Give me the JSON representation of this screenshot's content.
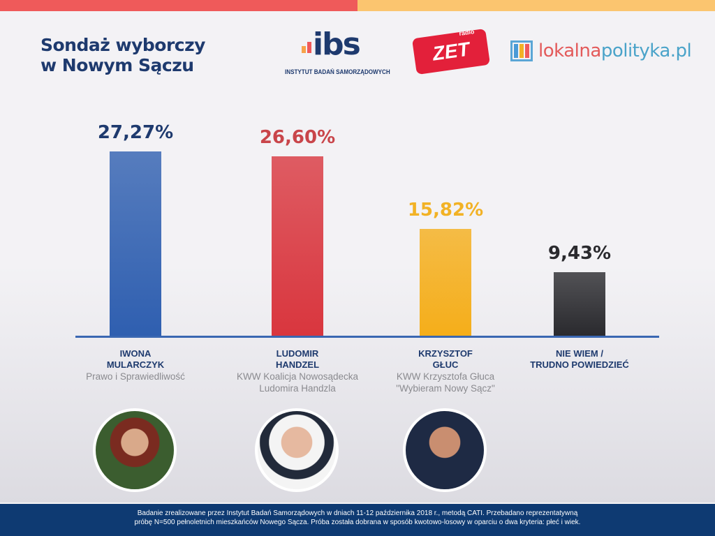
{
  "header": {
    "title_line1": "Sondaż wyborczy",
    "title_line2": "w Nowym Sączu",
    "logos": {
      "ibs": "ibs",
      "ibs_sub": "INSTYTUT BADAŃ SAMORZĄDOWYCH",
      "zet": "ZET",
      "zet_small": "radio",
      "lp_a": "lokalna",
      "lp_b": "polityka.pl"
    }
  },
  "chart_data": {
    "type": "bar",
    "categories": [
      "IWONA MULARCZYK",
      "LUDOMIR HANDZEL",
      "KRZYSZTOF GŁUC",
      "NIE WIEM / TRUDNO POWIEDZIEĆ"
    ],
    "values": [
      27.27,
      26.6,
      15.82,
      9.43
    ],
    "value_labels": [
      "27,27%",
      "26,60%",
      "15,82%",
      "9,43%"
    ],
    "colors": [
      "#2f5fb0",
      "#d9363e",
      "#f5ae1a",
      "#2a2a2e"
    ],
    "label_colors": [
      "#1e3a6e",
      "#c9454a",
      "#f2b225",
      "#2a2a2e"
    ],
    "candidates": [
      {
        "name1": "IWONA",
        "name2": "MULARCZYK",
        "party1": "Prawo i Sprawiedliwość",
        "party2": ""
      },
      {
        "name1": "LUDOMIR",
        "name2": "HANDZEL",
        "party1": "KWW Koalicja Nowosądecka",
        "party2": "Ludomira Handzla"
      },
      {
        "name1": "KRZYSZTOF",
        "name2": "GŁUC",
        "party1": "KWW Krzysztofa Głuca",
        "party2": "\"Wybieram Nowy Sącz\""
      },
      {
        "name1": "NIE WIEM /",
        "name2": "TRUDNO POWIEDZIEĆ",
        "party1": "",
        "party2": ""
      }
    ]
  },
  "footer": {
    "line1": "Badanie zrealizowane przez Instytut Badań Samorządowych w dniach 11-12 października 2018 r., metodą CATI. Przebadano reprezentatywną",
    "line2": "próbę N=500 pełnoletnich mieszkańców Nowego Sącza. Próba została dobrana w sposób kwotowo-losowy w oparciu o dwa kryteria: płeć i wiek."
  }
}
